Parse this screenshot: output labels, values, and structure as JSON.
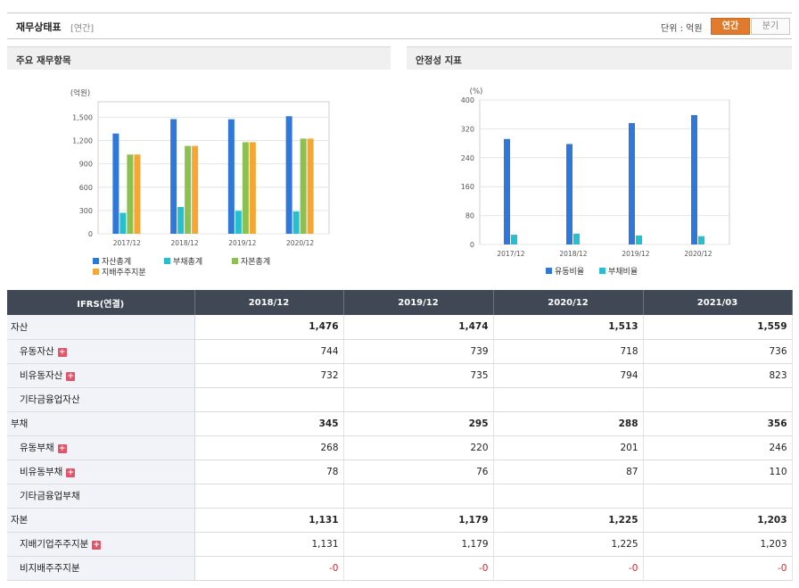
{
  "header": {
    "title": "재무상태표",
    "subtitle": "[연간]",
    "unit_label": "단위 : 억원",
    "toggle_annual": "연간",
    "toggle_quarter": "분기"
  },
  "left_panel": {
    "title": "주요 재무항목"
  },
  "right_panel": {
    "title": "안정성 지표"
  },
  "chart_data": [
    {
      "type": "bar",
      "ylabel": "(억원)",
      "ylim": [
        0,
        1700
      ],
      "yticks": [
        "0",
        "300",
        "600",
        "900",
        "1,200",
        "1,500"
      ],
      "ytick_values": [
        0,
        300,
        600,
        900,
        1200,
        1500
      ],
      "categories": [
        "2017/12",
        "2018/12",
        "2019/12",
        "2020/12"
      ],
      "series": [
        {
          "name": "자산총계",
          "color": "#2f78d9",
          "values": [
            1290,
            1476,
            1474,
            1513
          ]
        },
        {
          "name": "부채총계",
          "color": "#25bfcf",
          "values": [
            270,
            345,
            295,
            288
          ]
        },
        {
          "name": "자본총계",
          "color": "#8cc152",
          "values": [
            1020,
            1131,
            1179,
            1225
          ]
        },
        {
          "name": "지배주주지분",
          "color": "#f6a733",
          "values": [
            1020,
            1131,
            1179,
            1225
          ]
        }
      ],
      "legend_position": "bottom",
      "grid": true
    },
    {
      "type": "bar",
      "ylabel": "(%)",
      "ylim": [
        0,
        400
      ],
      "yticks": [
        "0",
        "80",
        "160",
        "240",
        "320",
        "400"
      ],
      "ytick_values": [
        0,
        80,
        160,
        240,
        320,
        400
      ],
      "categories": [
        "2017/12",
        "2018/12",
        "2019/12",
        "2020/12"
      ],
      "series": [
        {
          "name": "유동비율",
          "color": "#2f78d9",
          "values": [
            292,
            278,
            336,
            358
          ]
        },
        {
          "name": "부채비율",
          "color": "#25bfcf",
          "values": [
            27,
            30,
            25,
            23
          ]
        }
      ],
      "legend_position": "bottom",
      "grid": true
    }
  ],
  "table": {
    "header": [
      "IFRS(연결)",
      "2018/12",
      "2019/12",
      "2020/12",
      "2021/03"
    ],
    "rows": [
      {
        "label": "자산",
        "indent": false,
        "bold": true,
        "plus": false,
        "values": [
          "1,476",
          "1,474",
          "1,513",
          "1,559"
        ]
      },
      {
        "label": "유동자산",
        "indent": true,
        "bold": false,
        "plus": true,
        "values": [
          "744",
          "739",
          "718",
          "736"
        ]
      },
      {
        "label": "비유동자산",
        "indent": true,
        "bold": false,
        "plus": true,
        "values": [
          "732",
          "735",
          "794",
          "823"
        ]
      },
      {
        "label": "기타금융업자산",
        "indent": true,
        "bold": false,
        "plus": false,
        "values": [
          "",
          "",
          "",
          ""
        ]
      },
      {
        "label": "부채",
        "indent": false,
        "bold": true,
        "plus": false,
        "values": [
          "345",
          "295",
          "288",
          "356"
        ]
      },
      {
        "label": "유동부채",
        "indent": true,
        "bold": false,
        "plus": true,
        "values": [
          "268",
          "220",
          "201",
          "246"
        ]
      },
      {
        "label": "비유동부채",
        "indent": true,
        "bold": false,
        "plus": true,
        "values": [
          "78",
          "76",
          "87",
          "110"
        ]
      },
      {
        "label": "기타금융업부채",
        "indent": true,
        "bold": false,
        "plus": false,
        "values": [
          "",
          "",
          "",
          ""
        ]
      },
      {
        "label": "자본",
        "indent": false,
        "bold": true,
        "plus": false,
        "values": [
          "1,131",
          "1,179",
          "1,225",
          "1,203"
        ]
      },
      {
        "label": "지배기업주주지분",
        "indent": true,
        "bold": false,
        "plus": true,
        "values": [
          "1,131",
          "1,179",
          "1,225",
          "1,203"
        ]
      },
      {
        "label": "비지배주주지분",
        "indent": true,
        "bold": false,
        "plus": false,
        "values": [
          "-0",
          "-0",
          "-0",
          "-0"
        ]
      }
    ]
  },
  "colors": {
    "accent": "#e07b2e",
    "table_header": "#404856",
    "negative": "#d8262b",
    "plus_icon": "#e05568"
  }
}
